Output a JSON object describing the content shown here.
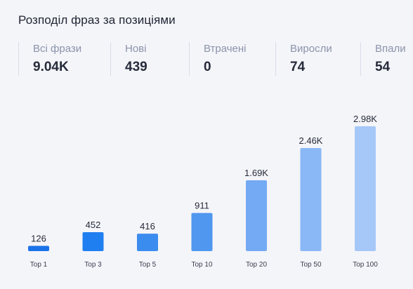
{
  "title": "Розподіл фраз за позиціями",
  "stats": [
    {
      "label": "Всі фрази",
      "value": "9.04K"
    },
    {
      "label": "Нові",
      "value": "439"
    },
    {
      "label": "Втрачені",
      "value": "0"
    },
    {
      "label": "Виросли",
      "value": "74"
    },
    {
      "label": "Впали",
      "value": "54"
    }
  ],
  "chart_data": {
    "type": "bar",
    "title": "",
    "categories": [
      "Top 1",
      "Top 3",
      "Top 5",
      "Top 10",
      "Top 20",
      "Top 50",
      "Top 100"
    ],
    "values": [
      126,
      452,
      416,
      911,
      1690,
      2460,
      2980
    ],
    "value_labels": [
      "126",
      "452",
      "416",
      "911",
      "1.69K",
      "2.46K",
      "2.98K"
    ],
    "bar_colors": [
      "#1a73e8",
      "#1f7ff0",
      "#3b8cef",
      "#4f97ef",
      "#74aaf4",
      "#8ab8f6",
      "#a6c8f8"
    ],
    "xlabel": "",
    "ylabel": "",
    "grid": false,
    "legend": false
  }
}
